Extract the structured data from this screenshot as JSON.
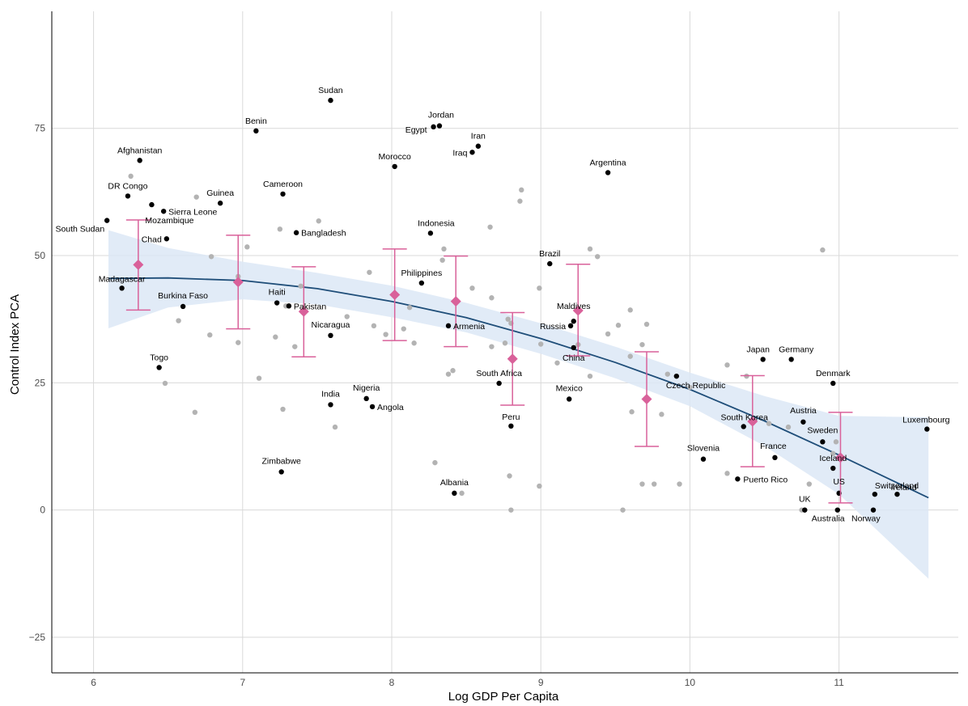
{
  "chart_data": {
    "type": "scatter",
    "xlabel": "Log GDP Per Capita",
    "ylabel": "Control Index PCA",
    "xlim": [
      5.72,
      11.8
    ],
    "ylim": [
      -32,
      98
    ],
    "x_ticks": [
      6,
      7,
      8,
      9,
      10,
      11
    ],
    "y_ticks": [
      -25,
      0,
      25,
      50,
      75
    ],
    "grid": true,
    "colors": {
      "labeled_point": "#000000",
      "unlabeled_point": "#b3b3b3",
      "fit_line": "#1f4e79",
      "confidence_band": "#dce8f6",
      "bin_mean": "#d9619a",
      "grid": "#d9d9d9"
    },
    "labeled_points": [
      {
        "name": "Sudan",
        "x": 7.59,
        "y": 80.5
      },
      {
        "name": "Benin",
        "x": 7.09,
        "y": 74.5
      },
      {
        "name": "Jordan",
        "x": 8.32,
        "y": 75.5
      },
      {
        "name": "Egypt",
        "x": 8.28,
        "y": 75.3
      },
      {
        "name": "Iran",
        "x": 8.58,
        "y": 71.5
      },
      {
        "name": "Iraq",
        "x": 8.54,
        "y": 70.3
      },
      {
        "name": "Afghanistan",
        "x": 6.31,
        "y": 68.7
      },
      {
        "name": "Morocco",
        "x": 8.02,
        "y": 67.5
      },
      {
        "name": "Argentina",
        "x": 9.45,
        "y": 66.3
      },
      {
        "name": "DR Congo",
        "x": 6.23,
        "y": 61.7
      },
      {
        "name": "Cameroon",
        "x": 7.27,
        "y": 62.1
      },
      {
        "name": "Guinea",
        "x": 6.85,
        "y": 60.3
      },
      {
        "name": "Sierra Leone",
        "x": 6.47,
        "y": 58.7
      },
      {
        "name": "South Sudan",
        "x": 6.09,
        "y": 56.9
      },
      {
        "name": "Mozambique",
        "x": 6.39,
        "y": 60.0
      },
      {
        "name": "Chad",
        "x": 6.49,
        "y": 53.3
      },
      {
        "name": "Bangladesh",
        "x": 7.36,
        "y": 54.5
      },
      {
        "name": "Indonesia",
        "x": 8.26,
        "y": 54.4
      },
      {
        "name": "Brazil",
        "x": 9.06,
        "y": 48.4
      },
      {
        "name": "Madagascar",
        "x": 6.19,
        "y": 43.6
      },
      {
        "name": "Philippines",
        "x": 8.2,
        "y": 44.6
      },
      {
        "name": "Haiti",
        "x": 7.23,
        "y": 40.7
      },
      {
        "name": "Pakistan",
        "x": 7.31,
        "y": 40.1
      },
      {
        "name": "Burkina Faso",
        "x": 6.6,
        "y": 40.0
      },
      {
        "name": "Maldives",
        "x": 9.22,
        "y": 37.1
      },
      {
        "name": "Russia",
        "x": 9.2,
        "y": 36.2
      },
      {
        "name": "Armenia",
        "x": 8.38,
        "y": 36.2
      },
      {
        "name": "Nicaragua",
        "x": 7.59,
        "y": 34.3
      },
      {
        "name": "China",
        "x": 9.22,
        "y": 31.9
      },
      {
        "name": "Japan",
        "x": 10.49,
        "y": 29.6
      },
      {
        "name": "Germany",
        "x": 10.68,
        "y": 29.6
      },
      {
        "name": "Togo",
        "x": 6.44,
        "y": 28.0
      },
      {
        "name": "Denmark",
        "x": 10.96,
        "y": 24.9
      },
      {
        "name": "South Africa",
        "x": 8.72,
        "y": 24.9
      },
      {
        "name": "Czech Republic",
        "x": 9.91,
        "y": 26.3
      },
      {
        "name": "Nigeria",
        "x": 7.83,
        "y": 21.9
      },
      {
        "name": "Mexico",
        "x": 9.19,
        "y": 21.8
      },
      {
        "name": "India",
        "x": 7.59,
        "y": 20.7
      },
      {
        "name": "Angola",
        "x": 7.87,
        "y": 20.3
      },
      {
        "name": "Austria",
        "x": 10.76,
        "y": 17.3
      },
      {
        "name": "South Korea",
        "x": 10.36,
        "y": 16.4
      },
      {
        "name": "Peru",
        "x": 8.8,
        "y": 16.5
      },
      {
        "name": "Luxembourg",
        "x": 11.59,
        "y": 15.9
      },
      {
        "name": "Sweden",
        "x": 10.89,
        "y": 13.4
      },
      {
        "name": "France",
        "x": 10.57,
        "y": 10.3
      },
      {
        "name": "Slovenia",
        "x": 10.09,
        "y": 10.0
      },
      {
        "name": "Iceland",
        "x": 10.96,
        "y": 8.2
      },
      {
        "name": "Zimbabwe",
        "x": 7.26,
        "y": 7.5
      },
      {
        "name": "Puerto Rico",
        "x": 10.32,
        "y": 6.1
      },
      {
        "name": "Albania",
        "x": 8.42,
        "y": 3.3
      },
      {
        "name": "US",
        "x": 11.0,
        "y": 3.3
      },
      {
        "name": "Switzerland",
        "x": 11.24,
        "y": 3.1
      },
      {
        "name": "Ireland",
        "x": 11.39,
        "y": 3.1
      },
      {
        "name": "UK",
        "x": 10.77,
        "y": 0.0
      },
      {
        "name": "Australia",
        "x": 10.99,
        "y": 0.0
      },
      {
        "name": "Norway",
        "x": 11.23,
        "y": 0.0
      }
    ],
    "unlabeled_points": [
      [
        6.25,
        65.6
      ],
      [
        6.69,
        61.5
      ],
      [
        7.51,
        56.8
      ],
      [
        7.25,
        55.2
      ],
      [
        8.35,
        51.3
      ],
      [
        8.34,
        49.1
      ],
      [
        7.03,
        51.7
      ],
      [
        6.79,
        49.8
      ],
      [
        6.97,
        45.9
      ],
      [
        7.39,
        44.0
      ],
      [
        7.85,
        46.7
      ],
      [
        8.12,
        39.8
      ],
      [
        7.29,
        40.1
      ],
      [
        7.7,
        38.0
      ],
      [
        7.88,
        36.2
      ],
      [
        8.08,
        35.6
      ],
      [
        8.15,
        32.8
      ],
      [
        7.96,
        34.5
      ],
      [
        7.22,
        34.0
      ],
      [
        7.35,
        32.1
      ],
      [
        6.78,
        34.4
      ],
      [
        6.57,
        37.2
      ],
      [
        6.97,
        32.9
      ],
      [
        6.48,
        24.9
      ],
      [
        6.68,
        19.2
      ],
      [
        7.11,
        25.9
      ],
      [
        7.27,
        19.8
      ],
      [
        7.62,
        16.3
      ],
      [
        8.38,
        26.7
      ],
      [
        8.41,
        27.4
      ],
      [
        8.29,
        9.3
      ],
      [
        8.47,
        3.3
      ],
      [
        8.79,
        6.7
      ],
      [
        8.8,
        0.0
      ],
      [
        8.99,
        4.7
      ],
      [
        8.87,
        62.9
      ],
      [
        8.86,
        60.7
      ],
      [
        8.66,
        55.6
      ],
      [
        8.54,
        43.6
      ],
      [
        8.67,
        41.7
      ],
      [
        8.78,
        37.5
      ],
      [
        8.8,
        36.7
      ],
      [
        8.76,
        32.8
      ],
      [
        8.67,
        32.1
      ],
      [
        8.99,
        43.6
      ],
      [
        9.0,
        32.6
      ],
      [
        9.11,
        28.9
      ],
      [
        9.33,
        51.3
      ],
      [
        9.38,
        49.8
      ],
      [
        9.25,
        32.5
      ],
      [
        9.33,
        26.3
      ],
      [
        9.6,
        39.3
      ],
      [
        9.52,
        36.3
      ],
      [
        9.45,
        34.6
      ],
      [
        9.6,
        30.2
      ],
      [
        9.68,
        32.5
      ],
      [
        9.71,
        36.5
      ],
      [
        9.61,
        19.3
      ],
      [
        9.81,
        18.8
      ],
      [
        9.85,
        26.7
      ],
      [
        10.0,
        24.1
      ],
      [
        9.68,
        5.1
      ],
      [
        9.76,
        5.1
      ],
      [
        9.93,
        5.1
      ],
      [
        9.55,
        0.0
      ],
      [
        10.25,
        28.5
      ],
      [
        10.38,
        26.3
      ],
      [
        10.25,
        7.2
      ],
      [
        10.53,
        17.0
      ],
      [
        10.66,
        16.3
      ],
      [
        10.75,
        0.0
      ],
      [
        10.77,
        0.0
      ],
      [
        10.8,
        5.1
      ],
      [
        10.89,
        51.1
      ],
      [
        10.96,
        11.1
      ],
      [
        10.98,
        13.4
      ]
    ],
    "fit_curve": {
      "x": [
        6.1,
        6.5,
        7.0,
        7.5,
        8.0,
        8.5,
        9.0,
        9.5,
        10.0,
        10.5,
        11.0,
        11.6
      ],
      "y": [
        45.5,
        45.6,
        45.1,
        43.5,
        41.0,
        37.8,
        33.7,
        29.0,
        23.7,
        17.5,
        10.8,
        2.4
      ],
      "ci_upper": [
        55.0,
        51.5,
        48.8,
        46.6,
        44.1,
        40.7,
        36.7,
        32.1,
        27.0,
        22.4,
        18.5,
        18.2
      ],
      "ci_lower": [
        35.7,
        39.8,
        41.4,
        40.4,
        37.9,
        34.9,
        30.7,
        25.9,
        20.4,
        12.6,
        3.1,
        -13.5
      ]
    },
    "bin_means": [
      {
        "x": 6.3,
        "mean": 48.2,
        "lower": 39.3,
        "upper": 57.0
      },
      {
        "x": 6.97,
        "mean": 44.8,
        "lower": 35.6,
        "upper": 54.0
      },
      {
        "x": 7.41,
        "mean": 39.0,
        "lower": 30.1,
        "upper": 47.8
      },
      {
        "x": 8.02,
        "mean": 42.3,
        "lower": 33.3,
        "upper": 51.3
      },
      {
        "x": 8.43,
        "mean": 41.0,
        "lower": 32.1,
        "upper": 49.9
      },
      {
        "x": 8.81,
        "mean": 29.7,
        "lower": 20.6,
        "upper": 38.8
      },
      {
        "x": 9.25,
        "mean": 39.2,
        "lower": 30.3,
        "upper": 48.3
      },
      {
        "x": 9.71,
        "mean": 21.8,
        "lower": 12.5,
        "upper": 31.1
      },
      {
        "x": 10.42,
        "mean": 17.4,
        "lower": 8.5,
        "upper": 26.4
      },
      {
        "x": 11.01,
        "mean": 10.3,
        "lower": 1.4,
        "upper": 19.2
      }
    ]
  }
}
